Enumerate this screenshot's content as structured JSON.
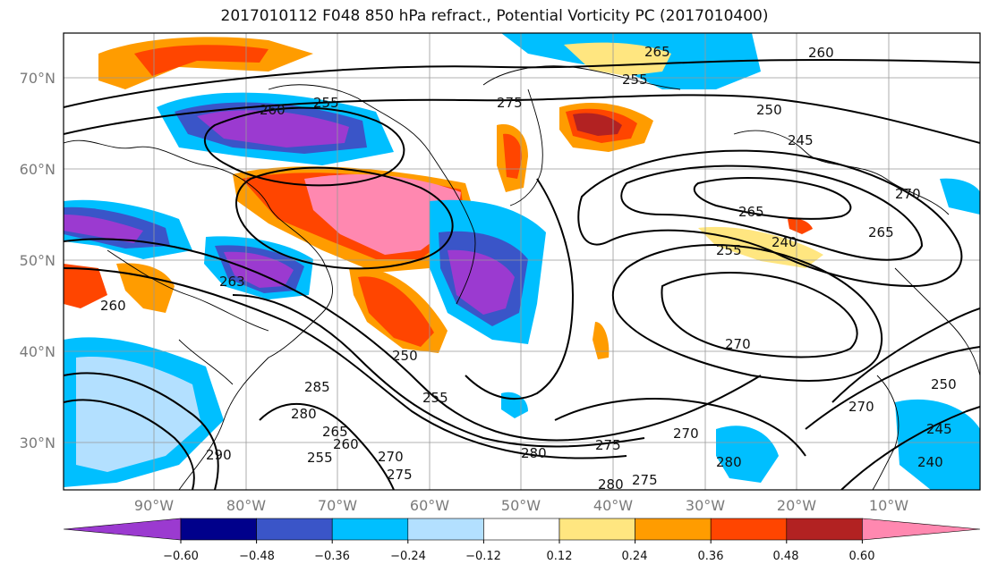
{
  "title": "2017010112 F048 850 hPa refract., Potential Vorticity PC (2017010400)",
  "map": {
    "lat_labels": [
      "70°N",
      "60°N",
      "50°N",
      "40°N",
      "30°N"
    ],
    "lon_labels": [
      "90°W",
      "80°W",
      "70°W",
      "60°W",
      "50°W",
      "40°W",
      "30°W",
      "20°W",
      "10°W"
    ],
    "contour_labels": [
      "265",
      "260",
      "255",
      "275",
      "260",
      "255",
      "250",
      "245",
      "265",
      "255",
      "240",
      "265",
      "270",
      "263",
      "260",
      "290",
      "285",
      "280",
      "265",
      "260",
      "255",
      "270",
      "275",
      "280",
      "275",
      "280",
      "270",
      "280",
      "275",
      "270",
      "250",
      "245",
      "240",
      "270",
      "250",
      "255"
    ]
  },
  "colorbar": {
    "ticks": [
      "−0.60",
      "−0.48",
      "−0.36",
      "−0.24",
      "−0.12",
      "0.12",
      "0.24",
      "0.36",
      "0.48",
      "0.60"
    ],
    "colors": [
      "#9b3ad0",
      "#00008b",
      "#3a55c8",
      "#00bfff",
      "#b3e0ff",
      "#ffffff",
      "#ffe680",
      "#ff9c00",
      "#ff4500",
      "#b22222",
      "#ff88b0"
    ]
  }
}
